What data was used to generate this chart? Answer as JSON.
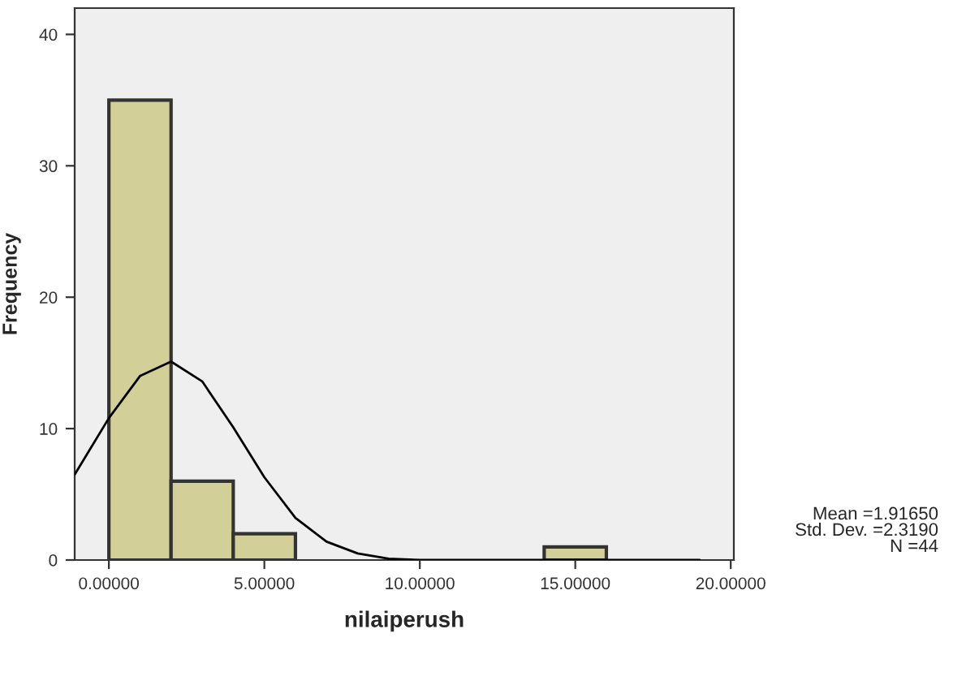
{
  "chart_data": {
    "type": "histogram",
    "xlabel": "nilaiperush",
    "ylabel": "Frequency",
    "bins": [
      0,
      2,
      4,
      6,
      8,
      10,
      12,
      14,
      16
    ],
    "values": [
      35,
      6,
      2,
      0,
      0,
      0,
      0,
      1
    ],
    "color": "#d3cf98",
    "series": [
      {
        "type": "line",
        "color": "#000000",
        "x": [
          -1.1,
          0,
          1,
          2,
          3,
          4,
          5,
          6,
          7,
          8,
          9,
          10,
          12,
          14,
          16,
          18,
          19
        ],
        "values": [
          6.5,
          10.8,
          14.0,
          15.1,
          13.6,
          10.1,
          6.3,
          3.2,
          1.4,
          0.5,
          0.1,
          0,
          0,
          0,
          0,
          0,
          0
        ]
      }
    ],
    "xlim": [
      -1.1,
      20.1
    ],
    "ylim": [
      0,
      42
    ],
    "xticks": [
      {
        "value": 0,
        "label": "0.00000"
      },
      {
        "value": 5,
        "label": "5.00000"
      },
      {
        "value": 10,
        "label": "10.00000"
      },
      {
        "value": 15,
        "label": "15.00000"
      },
      {
        "value": 20,
        "label": "20.00000"
      }
    ],
    "yticks": [
      0,
      10,
      20,
      30,
      40
    ],
    "grid": false,
    "legend": false,
    "annotations": [
      "Mean =1.91650\nStd. Dev. =2.3190\nN =44"
    ]
  }
}
